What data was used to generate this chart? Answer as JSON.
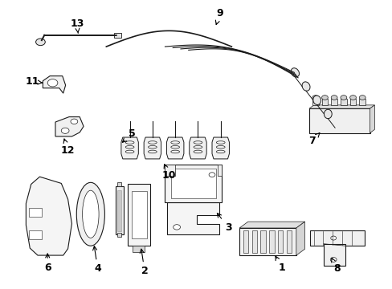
{
  "bg_color": "#ffffff",
  "line_color": "#1a1a1a",
  "label_color": "#000000",
  "label_fontsize": 9,
  "fig_width": 4.89,
  "fig_height": 3.6,
  "dpi": 100
}
